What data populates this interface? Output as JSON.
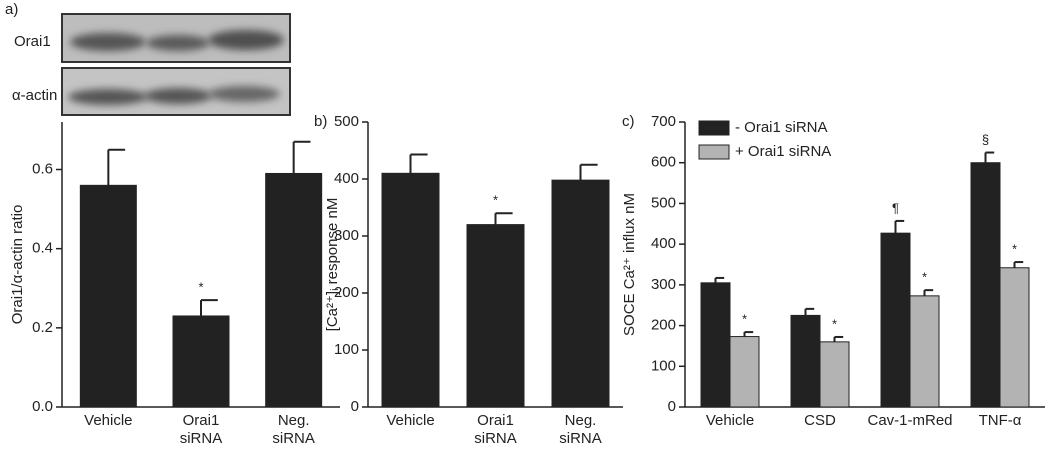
{
  "blot_labels": [
    "Orai1",
    "α-actin"
  ],
  "chart_data": [
    {
      "type": "bar",
      "panel_label": "a)",
      "y_label": "Orai1/α-actin ratio",
      "categories": [
        "Vehicle",
        "Orai1\nsiRNA",
        "Neg.\nsiRNA"
      ],
      "values": [
        0.56,
        0.23,
        0.59
      ],
      "errors": [
        0.09,
        0.04,
        0.08
      ],
      "annotations": [
        null,
        "*",
        null
      ],
      "color": "#222222",
      "ylim": [
        0,
        0.72
      ],
      "yticks": [
        {
          "value": 0,
          "label": "0.0"
        },
        0.2,
        0.4,
        0.6
      ]
    },
    {
      "type": "bar",
      "panel_label": "b)",
      "y_label": "[Ca²⁺]ᵢ response nM",
      "categories": [
        "Vehicle",
        "Orai1\nsiRNA",
        "Neg.\nsiRNA"
      ],
      "values": [
        410,
        320,
        398
      ],
      "errors": [
        33,
        20,
        27
      ],
      "annotations": [
        null,
        "*",
        null
      ],
      "color": "#222222",
      "ylim": [
        0,
        500
      ],
      "yticks": [
        0,
        100,
        200,
        300,
        400,
        500
      ]
    },
    {
      "type": "bar",
      "panel_label": "c)",
      "y_label": "SOCE Ca²⁺ influx nM",
      "categories": [
        "Vehicle",
        "CSD",
        "Cav-1-mRed",
        "TNF-α"
      ],
      "series": [
        {
          "name": "- Orai1 siRNA",
          "color": "#222222",
          "values": [
            305,
            225,
            427,
            600
          ],
          "errors": [
            12,
            16,
            30,
            25
          ],
          "annotations": [
            null,
            null,
            "¶",
            "§"
          ]
        },
        {
          "name": "+ Orai1 siRNA",
          "color": "#b3b3b3",
          "values": [
            173,
            160,
            273,
            342
          ],
          "errors": [
            11,
            12,
            14,
            14
          ],
          "annotations": [
            "*",
            "*",
            "*",
            "*"
          ]
        }
      ],
      "legend": "upper left",
      "ylim": [
        0,
        700
      ],
      "yticks": [
        0,
        100,
        200,
        300,
        400,
        500,
        600,
        700
      ]
    }
  ]
}
